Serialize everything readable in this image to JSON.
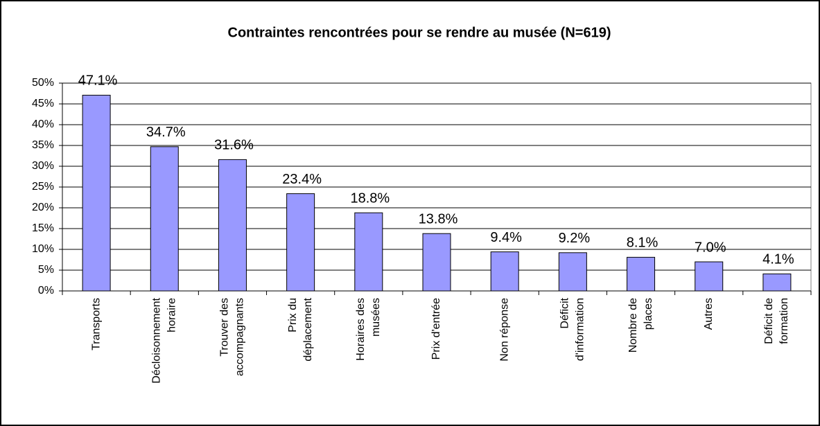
{
  "chart_data": {
    "type": "bar",
    "title": "Contraintes rencontrées pour se rendre au musée (N=619)",
    "categories": [
      [
        "Transports"
      ],
      [
        "Décloisonnement",
        "horaire"
      ],
      [
        "Trouver des",
        "accompagnants"
      ],
      [
        "Prix du",
        "déplacement"
      ],
      [
        "Horaires des",
        "musées"
      ],
      [
        "Prix d'entrée"
      ],
      [
        "Non réponse"
      ],
      [
        "Déficit",
        "d'information"
      ],
      [
        "Nombre de",
        "places"
      ],
      [
        "Autres"
      ],
      [
        "Déficit de",
        "formation"
      ]
    ],
    "values": [
      47.1,
      34.7,
      31.6,
      23.4,
      18.8,
      13.8,
      9.4,
      9.2,
      8.1,
      7.0,
      4.1
    ],
    "value_labels": [
      "47.1%",
      "34.7%",
      "31.6%",
      "23.4%",
      "18.8%",
      "13.8%",
      "9.4%",
      "9.2%",
      "8.1%",
      "7.0%",
      "4.1%"
    ],
    "color": "#9999ff",
    "ylim": [
      0,
      50
    ],
    "yticks": [
      {
        "value": 0,
        "label": "0%"
      },
      {
        "value": 5,
        "label": "5%"
      },
      {
        "value": 10,
        "label": "10%"
      },
      {
        "value": 15,
        "label": "15%"
      },
      {
        "value": 20,
        "label": "20%"
      },
      {
        "value": 25,
        "label": "25%"
      },
      {
        "value": 30,
        "label": "30%"
      },
      {
        "value": 35,
        "label": "35%"
      },
      {
        "value": 40,
        "label": "40%"
      },
      {
        "value": 45,
        "label": "45%"
      },
      {
        "value": 50,
        "label": "50%"
      }
    ],
    "grid": true
  }
}
